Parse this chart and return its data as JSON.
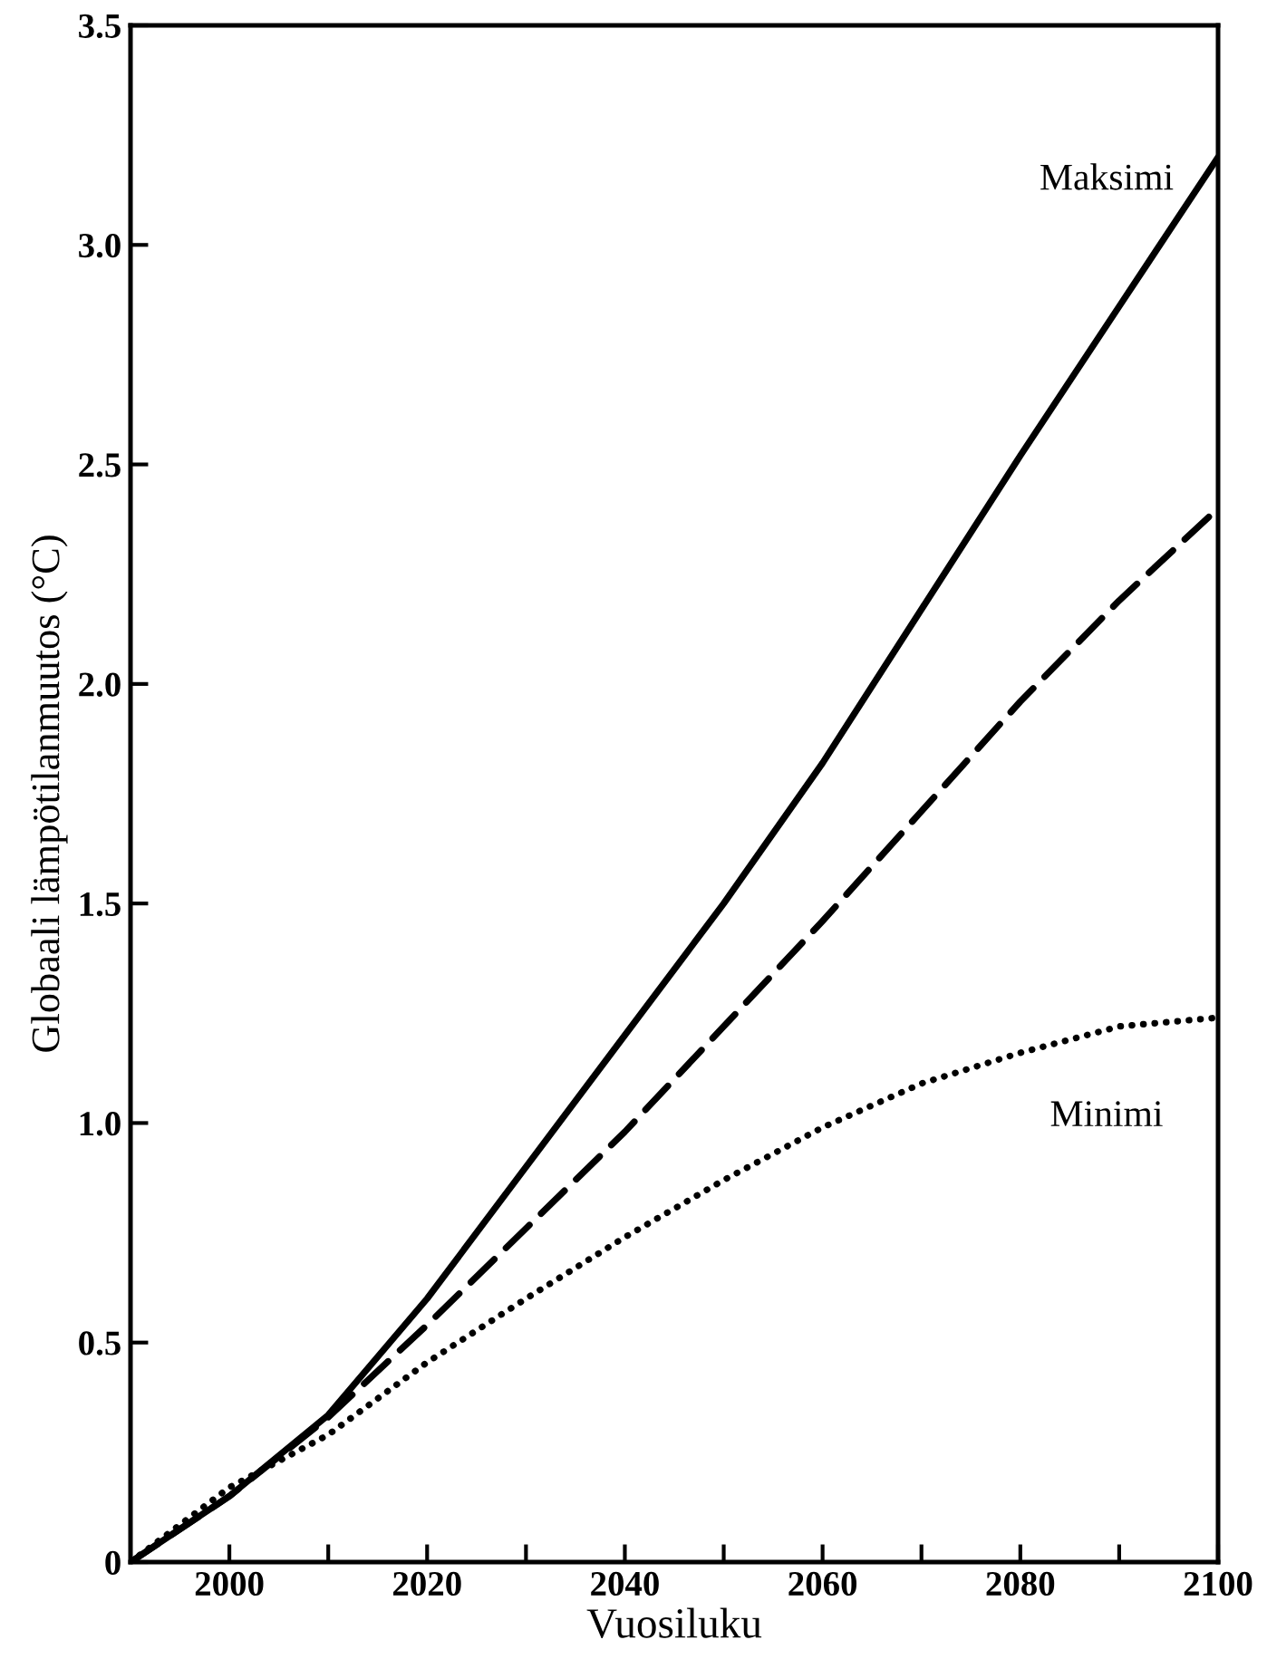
{
  "chart_data": {
    "type": "line",
    "xlabel": "Vuosiluku",
    "ylabel": "Globaali lämpötilanmuutos (°C)",
    "x": [
      1990,
      2000,
      2010,
      2020,
      2030,
      2040,
      2050,
      2060,
      2070,
      2080,
      2090,
      2100
    ],
    "series": [
      {
        "name": "Maksimi",
        "color": "#000000",
        "line_style": "solid",
        "values": [
          0,
          0.15,
          0.335,
          0.6,
          0.9,
          1.2,
          1.5,
          1.82,
          2.17,
          2.52,
          2.86,
          3.2
        ]
      },
      {
        "color": "#000000",
        "line_style": "dashed",
        "values": [
          0,
          0.15,
          0.33,
          0.54,
          0.76,
          0.98,
          1.22,
          1.46,
          1.71,
          1.96,
          2.19,
          2.4
        ]
      },
      {
        "name": "Minimi",
        "color": "#000000",
        "line_style": "dotted",
        "values": [
          0,
          0.17,
          0.29,
          0.455,
          0.6,
          0.74,
          0.87,
          0.99,
          1.09,
          1.16,
          1.22,
          1.24
        ]
      }
    ],
    "xlim": [
      1990,
      2100
    ],
    "ylim": [
      0,
      3.5
    ],
    "xticks": [
      2000,
      {
        "value": 2010,
        "label": null
      },
      2020,
      {
        "value": 2030,
        "label": null
      },
      2040,
      {
        "value": 2050,
        "label": null
      },
      2060,
      {
        "value": 2070,
        "label": null
      },
      2080,
      {
        "value": 2090,
        "label": null
      },
      2100
    ],
    "yticks": [
      0,
      0.5,
      {
        "value": 1,
        "label": "1.0"
      },
      1.5,
      {
        "value": 2,
        "label": "2.0"
      },
      2.5,
      {
        "value": 3,
        "label": "3.0"
      },
      3.5
    ],
    "grid": false,
    "legend": false,
    "marker": "none"
  }
}
